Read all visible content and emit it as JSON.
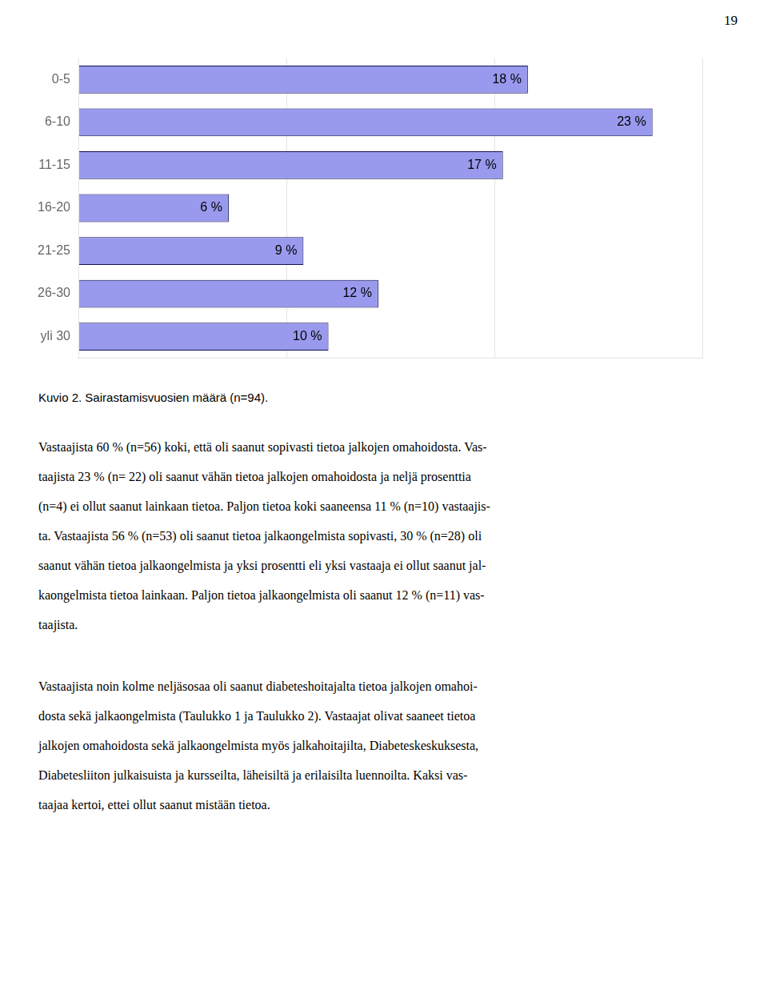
{
  "chart_data": {
    "type": "bar",
    "orientation": "horizontal",
    "title": "Kuvio 2. Sairastamisvuosien määrä (n=94).",
    "categories": [
      "0-5",
      "6-10",
      "11-15",
      "16-20",
      "21-25",
      "26-30",
      "yli 30"
    ],
    "values": [
      18,
      23,
      17,
      6,
      9,
      12,
      10
    ],
    "value_labels": [
      "18 %",
      "23 %",
      "17 %",
      "6 %",
      "9 %",
      "12 %",
      "10 %"
    ],
    "data_labels": true,
    "color": "#9999ee",
    "xlim": [
      0,
      25
    ],
    "xticks": [
      8.33,
      16.66,
      25
    ],
    "grid": true,
    "tick_labels": "y",
    "annotations": [
      [
        "19"
      ],
      [
        "Vastaajista 60 % (n=56) koki, että oli saanut sopivasti tietoa jalkojen omahoidosta. Vas-",
        "taajista 23 % (n= 22) oli saanut vähän tietoa jalkojen omahoidosta ja neljä prosenttia",
        "(n=4) ei ollut saanut lainkaan tietoa. Paljon tietoa koki saaneensa 11 % (n=10) vastaajis-",
        "ta. Vastaajista 56 % (n=53) oli saanut tietoa jalkaongelmista sopivasti, 30 % (n=28) oli",
        "saanut vähän tietoa jalkaongelmista ja yksi prosentti eli yksi vastaaja ei ollut saanut jal-",
        "kaongelmista tietoa lainkaan. Paljon tietoa jalkaongelmista oli saanut 12 % (n=11) vas-",
        "taajista."
      ],
      [
        "Vastaajista noin kolme neljäsosaa oli saanut diabeteshoitajalta tietoa jalkojen omahoi-",
        "dosta sekä jalkaongelmista (Taulukko 1 ja Taulukko 2). Vastaajat olivat saaneet tietoa",
        "jalkojen omahoidosta sekä jalkaongelmista myös jalkahoitajilta, Diabeteskeskuksesta,",
        "Diabetesliiton julkaisuista ja kursseilta, läheisiltä ja erilaisilta luennoilta. Kaksi vas-",
        "taajaa kertoi, ettei ollut saanut mistään tietoa."
      ]
    ]
  }
}
